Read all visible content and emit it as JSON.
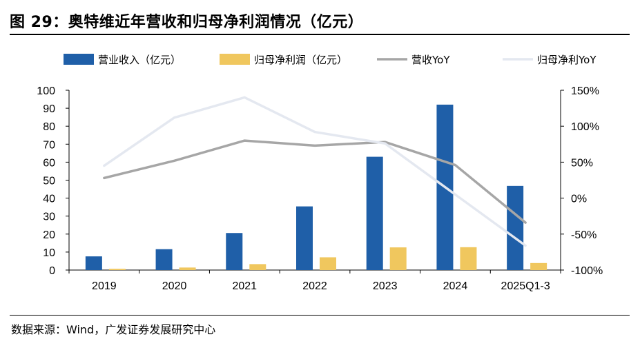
{
  "figure": {
    "title": "图 29：奥特维近年营收和归母净利润情况（亿元）",
    "source": "数据来源：Wind，广发证券发展研究中心"
  },
  "chart_data": {
    "type": "bar",
    "categories": [
      "2019",
      "2020",
      "2021",
      "2022",
      "2023",
      "2024",
      "2025Q1-3"
    ],
    "series": [
      {
        "name": "营业收入（亿元）",
        "type": "bar",
        "axis": "left",
        "color": "#1f5fa8",
        "values": [
          7.6,
          11.6,
          20.6,
          35.4,
          63.0,
          92.0,
          46.8
        ]
      },
      {
        "name": "归母净利润（亿元）",
        "type": "bar",
        "axis": "left",
        "color": "#f0c75e",
        "values": [
          0.7,
          1.4,
          3.3,
          7.1,
          12.6,
          12.7,
          3.9
        ]
      },
      {
        "name": "营收YoY",
        "type": "line",
        "axis": "right",
        "color": "#a6a6a6",
        "values": [
          28,
          52,
          80,
          73,
          78,
          46,
          -34
        ]
      },
      {
        "name": "归母净利YoY",
        "type": "line",
        "axis": "right",
        "color": "#e4e8f0",
        "values": [
          45,
          112,
          140,
          92,
          76,
          5,
          -66
        ]
      }
    ],
    "left_axis": {
      "min": 0,
      "max": 100,
      "step": 10,
      "ticks": [
        "0",
        "10",
        "20",
        "30",
        "40",
        "50",
        "60",
        "70",
        "80",
        "90",
        "100"
      ]
    },
    "right_axis": {
      "min": -100,
      "max": 150,
      "step": 50,
      "ticks": [
        "-100%",
        "-50%",
        "0%",
        "50%",
        "100%",
        "150%"
      ]
    },
    "legend": "top",
    "grid": false
  }
}
